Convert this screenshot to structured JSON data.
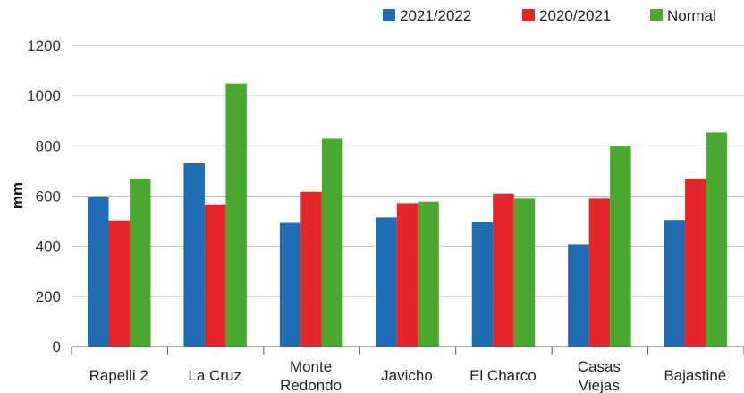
{
  "chart_data": {
    "type": "bar",
    "title": "",
    "xlabel": "",
    "ylabel": "mm",
    "ylim": [
      0,
      1200
    ],
    "yticks": [
      0,
      200,
      400,
      600,
      800,
      1000,
      1200
    ],
    "grid": true,
    "legend_position": "top-right",
    "categories": [
      [
        "Rapelli 2"
      ],
      [
        "La Cruz"
      ],
      [
        "Monte",
        "Redondo"
      ],
      [
        "Javicho"
      ],
      [
        "El Charco"
      ],
      [
        "Casas",
        "Viejas"
      ],
      [
        "Bajastiné"
      ]
    ],
    "series": [
      {
        "name": "2021/2022",
        "color": "#1f6db3",
        "values": [
          595,
          730,
          493,
          515,
          495,
          408,
          505
        ]
      },
      {
        "name": "2020/2021",
        "color": "#e4262b",
        "values": [
          503,
          567,
          617,
          572,
          610,
          590,
          670
        ]
      },
      {
        "name": "Normal",
        "color": "#4aaa2f",
        "values": [
          670,
          1048,
          828,
          578,
          590,
          800,
          853
        ]
      }
    ]
  }
}
